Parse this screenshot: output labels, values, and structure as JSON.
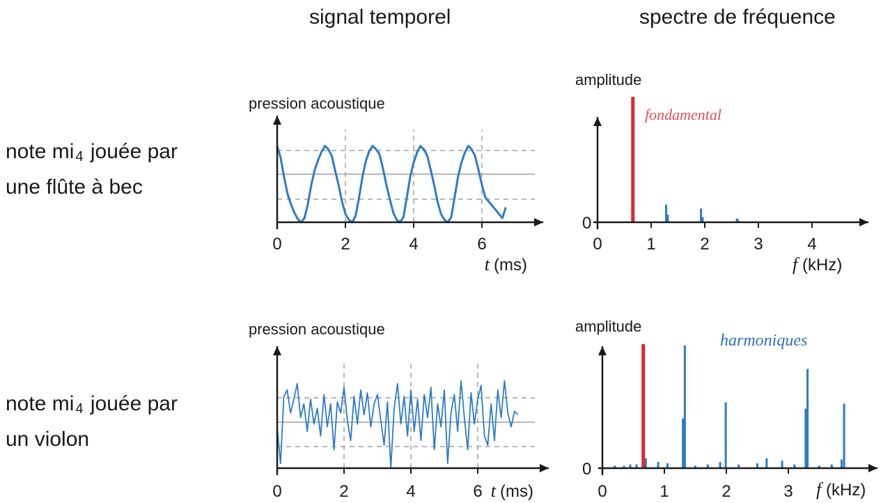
{
  "headers": {
    "time": "signal temporel",
    "freq": "spectre de fréquence"
  },
  "rows": [
    {
      "label_line1_pre": "note mi",
      "label_sub": "4",
      "label_line1_post": " jouée par",
      "label_line2": "une flûte à bec"
    },
    {
      "label_line1_pre": "note mi",
      "label_sub": "4",
      "label_line1_post": " jouée par",
      "label_line2": "un violon"
    }
  ],
  "colors": {
    "signal": "#2c7bc4",
    "fundamental": "#d92b2b",
    "axis": "#1a1a1a",
    "gridline": "#a0a0a0"
  },
  "chart_data": [
    {
      "type": "line",
      "id": "flute_time",
      "ylabel": "pression acoustique",
      "xlabel_var": "t",
      "xlabel_unit": "(ms)",
      "xticks": [
        0,
        2,
        4,
        6
      ],
      "xlim": [
        0,
        7.2
      ],
      "grid": "dashed",
      "x": [
        0,
        0.1,
        0.2,
        0.3,
        0.4,
        0.5,
        0.6,
        0.7,
        0.8,
        0.9,
        1.0,
        1.1,
        1.2,
        1.3,
        1.4,
        1.5,
        1.6,
        1.7,
        1.8,
        1.9,
        2.0,
        2.1,
        2.2,
        2.3,
        2.4,
        2.5,
        2.6,
        2.7,
        2.8,
        2.9,
        3.0,
        3.1,
        3.2,
        3.3,
        3.4,
        3.5,
        3.6,
        3.7,
        3.8,
        3.9,
        4.0,
        4.1,
        4.2,
        4.3,
        4.4,
        4.5,
        4.6,
        4.7,
        4.8,
        4.9,
        5.0,
        5.1,
        5.2,
        5.3,
        5.4,
        5.5,
        5.6,
        5.7,
        5.8,
        5.9,
        6.0,
        6.1,
        6.2,
        6.3,
        6.4,
        6.5,
        6.6,
        6.7
      ],
      "y": [
        0.92,
        0.78,
        0.55,
        0.35,
        0.22,
        0.12,
        0.04,
        0.0,
        0.05,
        0.22,
        0.45,
        0.63,
        0.75,
        0.85,
        0.92,
        0.88,
        0.8,
        0.62,
        0.45,
        0.25,
        0.1,
        0.03,
        0.0,
        0.08,
        0.3,
        0.55,
        0.74,
        0.86,
        0.92,
        0.88,
        0.82,
        0.65,
        0.45,
        0.28,
        0.12,
        0.03,
        0.0,
        0.06,
        0.3,
        0.55,
        0.72,
        0.84,
        0.92,
        0.88,
        0.8,
        0.63,
        0.45,
        0.25,
        0.1,
        0.03,
        0.0,
        0.06,
        0.3,
        0.55,
        0.72,
        0.84,
        0.92,
        0.88,
        0.8,
        0.63,
        0.45,
        0.3,
        0.25,
        0.2,
        0.15,
        0.1,
        0.05,
        0.18
      ]
    },
    {
      "type": "bar",
      "id": "flute_spectrum",
      "ylabel": "amplitude",
      "xlabel_var": "f",
      "xlabel_unit": "(kHz)",
      "xticks": [
        0,
        1,
        2,
        3,
        4
      ],
      "yticks": [
        0
      ],
      "xlim": [
        0,
        4.6
      ],
      "fundamental": {
        "f": 0.66,
        "amp": 1.0
      },
      "harmonics": [
        {
          "f": 1.28,
          "amp": 0.14
        },
        {
          "f": 1.31,
          "amp": 0.06
        },
        {
          "f": 1.93,
          "amp": 0.11
        },
        {
          "f": 1.96,
          "amp": 0.04
        },
        {
          "f": 2.6,
          "amp": 0.03
        },
        {
          "f": 2.62,
          "amp": 0.02
        }
      ],
      "annotation": "fondamental"
    },
    {
      "type": "line",
      "id": "violin_time",
      "ylabel": "pression acoustique",
      "xlabel_var": "t",
      "xlabel_unit": "(ms)",
      "xticks": [
        0,
        2,
        4,
        6
      ],
      "xlim": [
        0,
        7.2
      ],
      "grid": "dashed",
      "x": [
        0,
        0.1,
        0.2,
        0.3,
        0.4,
        0.5,
        0.6,
        0.7,
        0.8,
        0.9,
        1.0,
        1.1,
        1.2,
        1.3,
        1.4,
        1.5,
        1.6,
        1.7,
        1.8,
        1.9,
        2.0,
        2.1,
        2.2,
        2.3,
        2.4,
        2.5,
        2.6,
        2.7,
        2.8,
        2.9,
        3.0,
        3.1,
        3.2,
        3.3,
        3.4,
        3.5,
        3.6,
        3.7,
        3.8,
        3.9,
        4.0,
        4.1,
        4.2,
        4.3,
        4.4,
        4.5,
        4.6,
        4.7,
        4.8,
        4.9,
        5.0,
        5.1,
        5.2,
        5.3,
        5.4,
        5.5,
        5.6,
        5.7,
        5.8,
        5.9,
        6.0,
        6.1,
        6.2,
        6.3,
        6.4,
        6.5,
        6.6,
        6.7,
        6.8,
        6.9,
        7.0,
        7.1,
        7.2
      ],
      "y": [
        0.45,
        0.05,
        0.78,
        0.85,
        0.6,
        0.75,
        0.92,
        0.55,
        0.7,
        0.4,
        0.75,
        0.48,
        0.65,
        0.35,
        0.8,
        0.45,
        0.7,
        0.2,
        0.72,
        0.6,
        0.88,
        0.52,
        0.3,
        0.78,
        0.48,
        0.85,
        0.58,
        0.82,
        0.45,
        0.7,
        0.8,
        0.52,
        0.25,
        0.72,
        0.0,
        0.65,
        0.92,
        0.48,
        0.78,
        0.35,
        0.85,
        0.4,
        0.75,
        0.3,
        0.8,
        0.55,
        0.88,
        0.2,
        0.7,
        0.45,
        0.85,
        0.05,
        0.6,
        0.8,
        0.4,
        0.95,
        0.55,
        0.2,
        0.82,
        0.48,
        0.75,
        0.9,
        0.35,
        0.25,
        0.7,
        0.3,
        0.85,
        0.55,
        0.95,
        0.6,
        0.45,
        0.62,
        0.58
      ]
    },
    {
      "type": "bar",
      "id": "violin_spectrum",
      "ylabel": "amplitude",
      "xlabel_var": "f",
      "xlabel_unit": "(kHz)",
      "xticks": [
        0,
        1,
        2,
        3
      ],
      "yticks": [
        0
      ],
      "xlim": [
        0,
        4.2
      ],
      "fundamental": {
        "f": 0.66,
        "amp": 1.0
      },
      "harmonics": [
        {
          "f": 0.2,
          "amp": 0.02
        },
        {
          "f": 0.35,
          "amp": 0.02
        },
        {
          "f": 0.45,
          "amp": 0.03
        },
        {
          "f": 0.55,
          "amp": 0.03
        },
        {
          "f": 0.7,
          "amp": 0.08
        },
        {
          "f": 0.9,
          "amp": 0.05
        },
        {
          "f": 1.05,
          "amp": 0.04
        },
        {
          "f": 1.3,
          "amp": 0.4
        },
        {
          "f": 1.33,
          "amp": 0.99
        },
        {
          "f": 1.5,
          "amp": 0.02
        },
        {
          "f": 1.7,
          "amp": 0.03
        },
        {
          "f": 1.9,
          "amp": 0.05
        },
        {
          "f": 1.99,
          "amp": 0.53
        },
        {
          "f": 2.2,
          "amp": 0.03
        },
        {
          "f": 2.5,
          "amp": 0.04
        },
        {
          "f": 2.65,
          "amp": 0.08
        },
        {
          "f": 2.9,
          "amp": 0.06
        },
        {
          "f": 3.1,
          "amp": 0.03
        },
        {
          "f": 3.28,
          "amp": 0.48
        },
        {
          "f": 3.31,
          "amp": 0.8
        },
        {
          "f": 3.5,
          "amp": 0.02
        },
        {
          "f": 3.7,
          "amp": 0.03
        },
        {
          "f": 3.86,
          "amp": 0.07
        },
        {
          "f": 3.9,
          "amp": 0.52
        }
      ],
      "annotation": "harmoniques"
    }
  ]
}
